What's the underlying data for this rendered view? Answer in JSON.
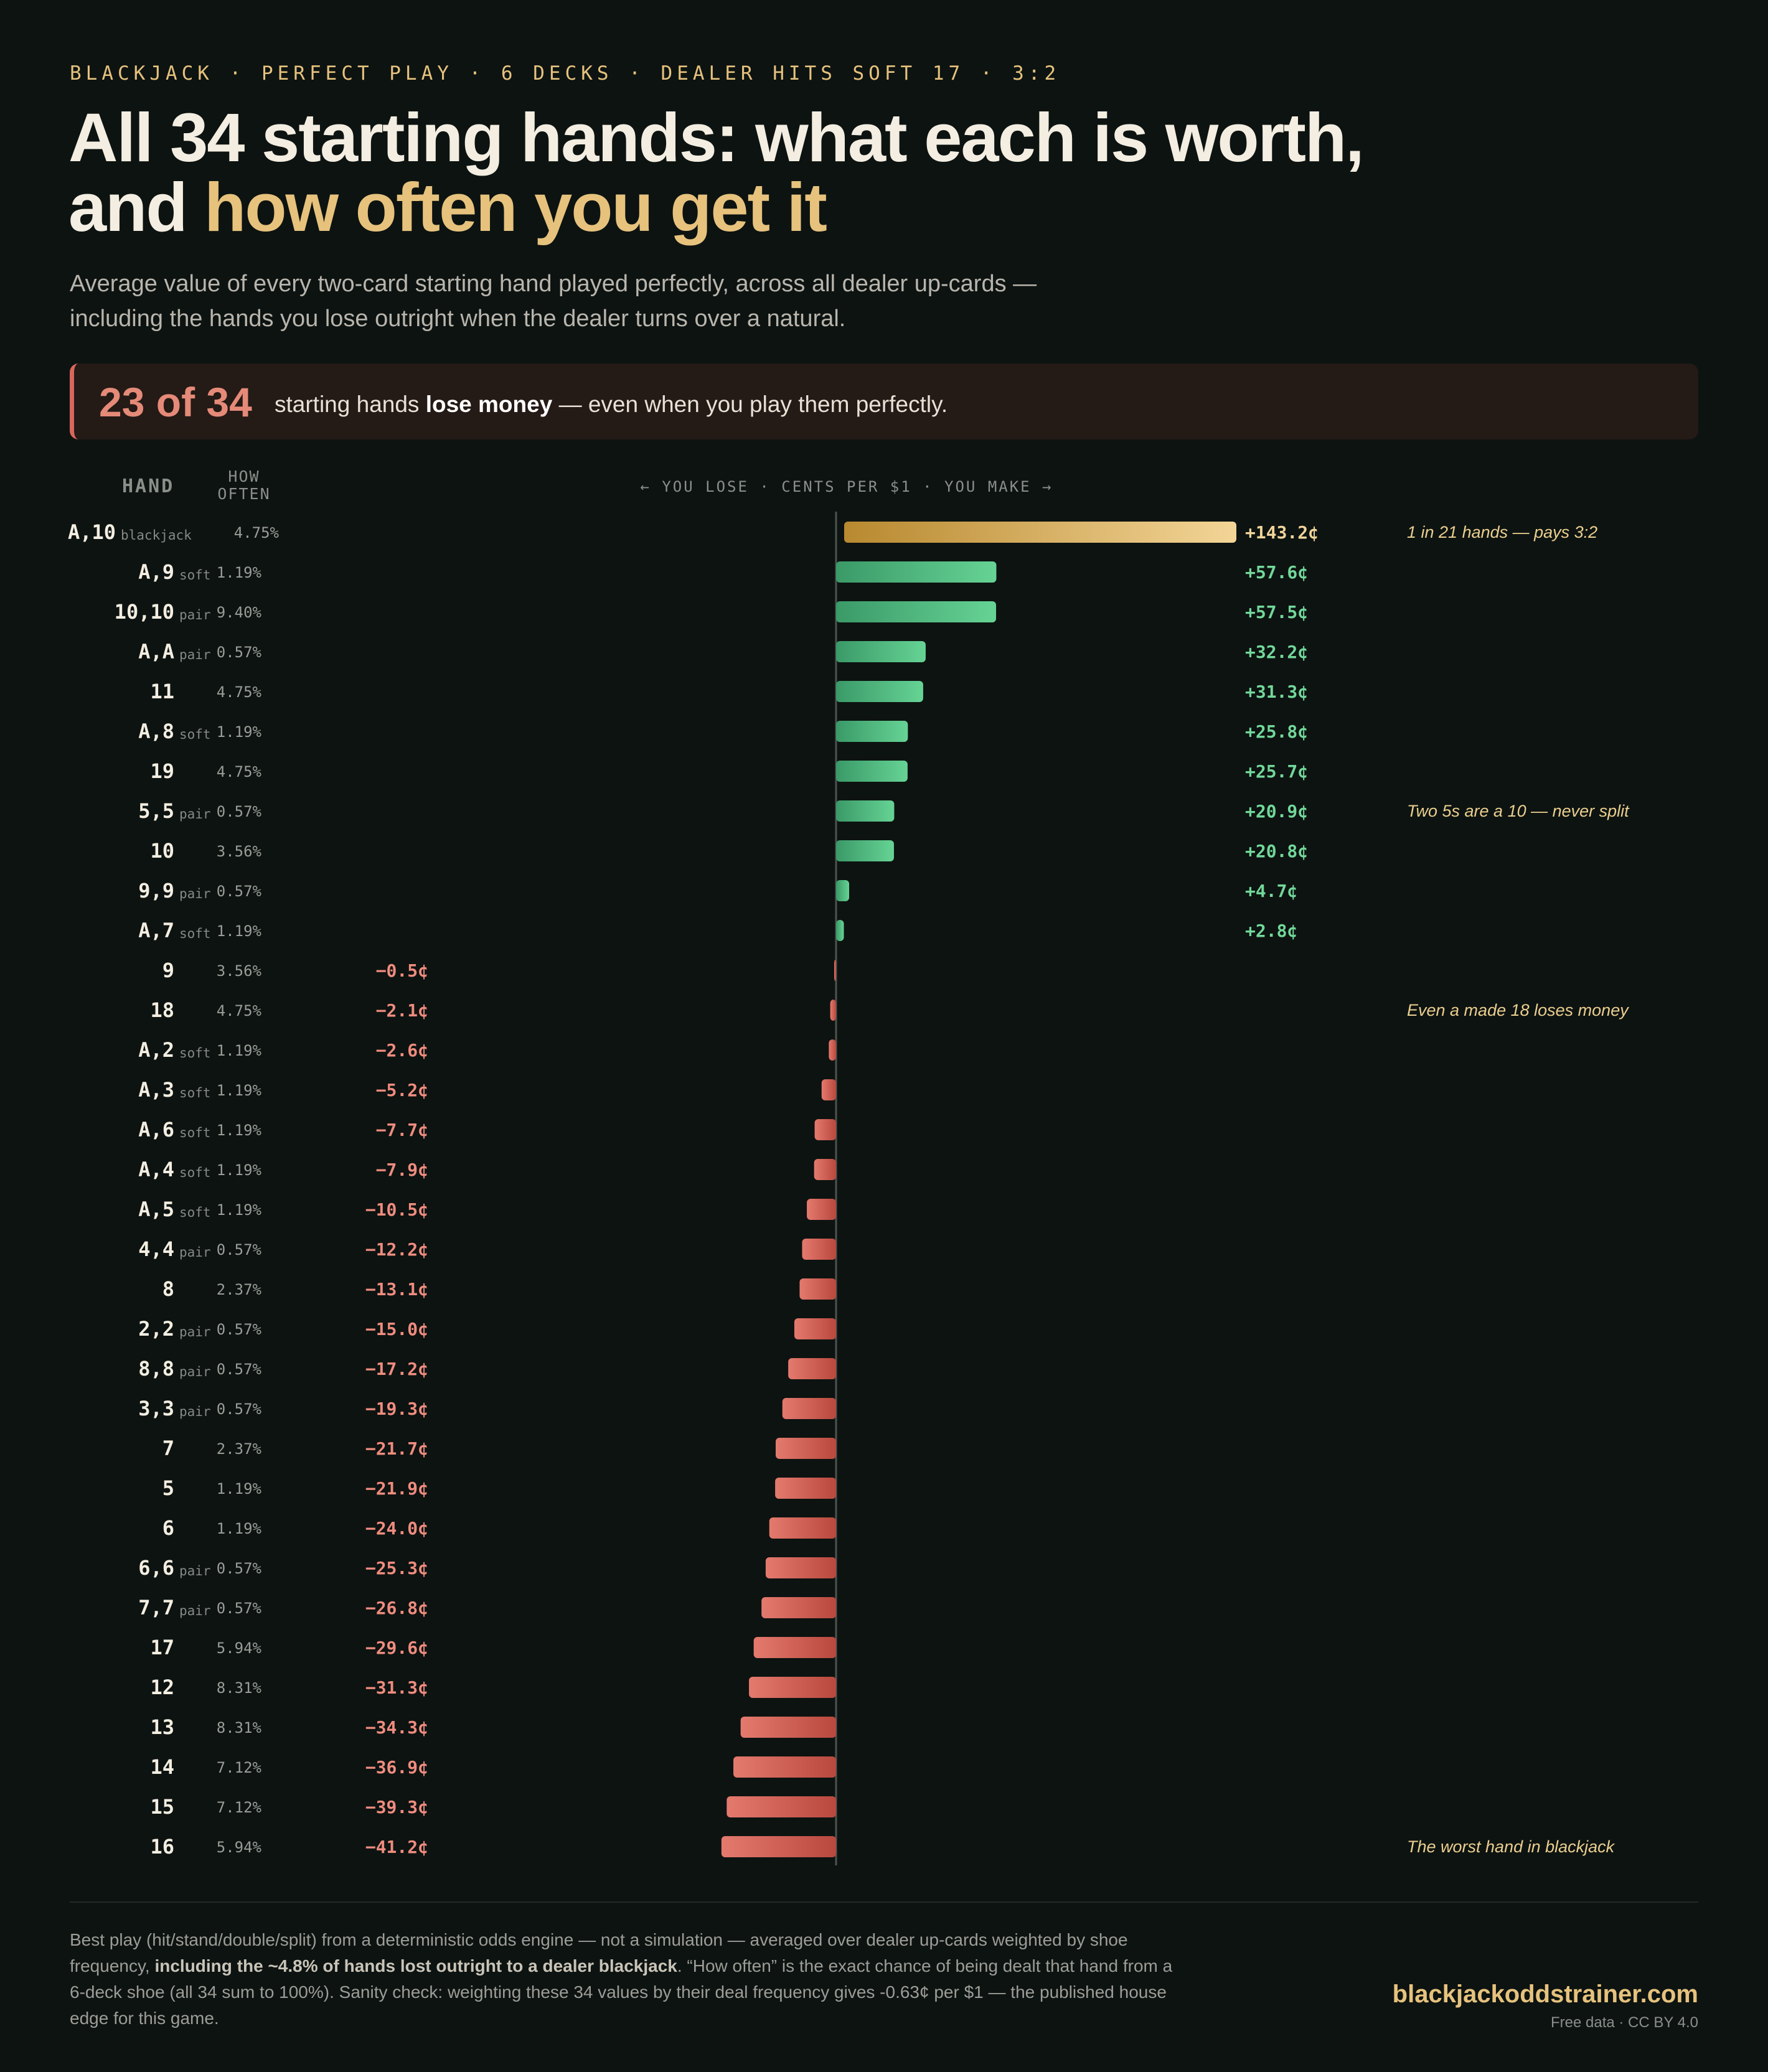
{
  "header": {
    "kicker": "BLACKJACK · PERFECT PLAY · 6 DECKS · DEALER HITS SOFT 17 · 3:2",
    "title_line1": "All 34 starting hands: what each is worth,",
    "title_line2_plain": "and ",
    "title_line2_highlight": "how often you get it",
    "subtitle_line1": "Average value of every two-card starting hand played perfectly, across all dealer up-cards —",
    "subtitle_line2": "including the hands you lose outright when the dealer turns over a natural."
  },
  "callout": {
    "big": "23 of 34",
    "text_pre": "starting hands ",
    "text_bold": "lose money",
    "text_post": " — even when you play them perfectly."
  },
  "columns": {
    "hand": "HAND",
    "often_line1": "HOW",
    "often_line2": "OFTEN",
    "axis": "← YOU LOSE · CENTS PER $1 · YOU MAKE →"
  },
  "colors": {
    "positive": "#5ec98c",
    "negative": "#d9675b",
    "blackjack": "#e6c27d",
    "highlight": "#e6c27d"
  },
  "chart_data": {
    "type": "bar",
    "orientation": "horizontal",
    "unit": "¢",
    "series": [
      {
        "name": "",
        "points": [
          {
            "hand": "A,10",
            "tag": "blackjack",
            "freq": "4.75%",
            "value": 143.2,
            "label": "+143.2¢",
            "note": "1 in 21 hands — pays 3:2"
          },
          {
            "hand": "A,9",
            "tag": "soft",
            "freq": "1.19%",
            "value": 57.6,
            "label": "+57.6¢",
            "note": ""
          },
          {
            "hand": "10,10",
            "tag": "pair",
            "freq": "9.40%",
            "value": 57.5,
            "label": "+57.5¢",
            "note": ""
          },
          {
            "hand": "A,A",
            "tag": "pair",
            "freq": "0.57%",
            "value": 32.2,
            "label": "+32.2¢",
            "note": ""
          },
          {
            "hand": "11",
            "tag": "",
            "freq": "4.75%",
            "value": 31.3,
            "label": "+31.3¢",
            "note": ""
          },
          {
            "hand": "A,8",
            "tag": "soft",
            "freq": "1.19%",
            "value": 25.8,
            "label": "+25.8¢",
            "note": ""
          },
          {
            "hand": "19",
            "tag": "",
            "freq": "4.75%",
            "value": 25.7,
            "label": "+25.7¢",
            "note": ""
          },
          {
            "hand": "5,5",
            "tag": "pair",
            "freq": "0.57%",
            "value": 20.9,
            "label": "+20.9¢",
            "note": "Two 5s are a 10 — never split"
          },
          {
            "hand": "10",
            "tag": "",
            "freq": "3.56%",
            "value": 20.8,
            "label": "+20.8¢",
            "note": ""
          },
          {
            "hand": "9,9",
            "tag": "pair",
            "freq": "0.57%",
            "value": 4.7,
            "label": "+4.7¢",
            "note": ""
          },
          {
            "hand": "A,7",
            "tag": "soft",
            "freq": "1.19%",
            "value": 2.8,
            "label": "+2.8¢",
            "note": ""
          },
          {
            "hand": "9",
            "tag": "",
            "freq": "3.56%",
            "value": -0.5,
            "label": "−0.5¢",
            "note": ""
          },
          {
            "hand": "18",
            "tag": "",
            "freq": "4.75%",
            "value": -2.1,
            "label": "−2.1¢",
            "note": "Even a made 18 loses money"
          },
          {
            "hand": "A,2",
            "tag": "soft",
            "freq": "1.19%",
            "value": -2.6,
            "label": "−2.6¢",
            "note": ""
          },
          {
            "hand": "A,3",
            "tag": "soft",
            "freq": "1.19%",
            "value": -5.2,
            "label": "−5.2¢",
            "note": ""
          },
          {
            "hand": "A,6",
            "tag": "soft",
            "freq": "1.19%",
            "value": -7.7,
            "label": "−7.7¢",
            "note": ""
          },
          {
            "hand": "A,4",
            "tag": "soft",
            "freq": "1.19%",
            "value": -7.9,
            "label": "−7.9¢",
            "note": ""
          },
          {
            "hand": "A,5",
            "tag": "soft",
            "freq": "1.19%",
            "value": -10.5,
            "label": "−10.5¢",
            "note": ""
          },
          {
            "hand": "4,4",
            "tag": "pair",
            "freq": "0.57%",
            "value": -12.2,
            "label": "−12.2¢",
            "note": ""
          },
          {
            "hand": "8",
            "tag": "",
            "freq": "2.37%",
            "value": -13.1,
            "label": "−13.1¢",
            "note": ""
          },
          {
            "hand": "2,2",
            "tag": "pair",
            "freq": "0.57%",
            "value": -15.0,
            "label": "−15.0¢",
            "note": ""
          },
          {
            "hand": "8,8",
            "tag": "pair",
            "freq": "0.57%",
            "value": -17.2,
            "label": "−17.2¢",
            "note": ""
          },
          {
            "hand": "3,3",
            "tag": "pair",
            "freq": "0.57%",
            "value": -19.3,
            "label": "−19.3¢",
            "note": ""
          },
          {
            "hand": "7",
            "tag": "",
            "freq": "2.37%",
            "value": -21.7,
            "label": "−21.7¢",
            "note": ""
          },
          {
            "hand": "5",
            "tag": "",
            "freq": "1.19%",
            "value": -21.9,
            "label": "−21.9¢",
            "note": ""
          },
          {
            "hand": "6",
            "tag": "",
            "freq": "1.19%",
            "value": -24.0,
            "label": "−24.0¢",
            "note": ""
          },
          {
            "hand": "6,6",
            "tag": "pair",
            "freq": "0.57%",
            "value": -25.3,
            "label": "−25.3¢",
            "note": ""
          },
          {
            "hand": "7,7",
            "tag": "pair",
            "freq": "0.57%",
            "value": -26.8,
            "label": "−26.8¢",
            "note": ""
          },
          {
            "hand": "17",
            "tag": "",
            "freq": "5.94%",
            "value": -29.6,
            "label": "−29.6¢",
            "note": ""
          },
          {
            "hand": "12",
            "tag": "",
            "freq": "8.31%",
            "value": -31.3,
            "label": "−31.3¢",
            "note": ""
          },
          {
            "hand": "13",
            "tag": "",
            "freq": "8.31%",
            "value": -34.3,
            "label": "−34.3¢",
            "note": ""
          },
          {
            "hand": "14",
            "tag": "",
            "freq": "7.12%",
            "value": -36.9,
            "label": "−36.9¢",
            "note": ""
          },
          {
            "hand": "15",
            "tag": "",
            "freq": "7.12%",
            "value": -39.3,
            "label": "−39.3¢",
            "note": ""
          },
          {
            "hand": "16",
            "tag": "",
            "freq": "5.94%",
            "value": -41.2,
            "label": "−41.2¢",
            "note": "The worst hand in blackjack"
          }
        ]
      }
    ]
  },
  "footer": {
    "method_pre": "Best play (hit/stand/double/split) from a deterministic odds engine — not a simulation — averaged over dealer up-cards weighted by shoe frequency, ",
    "method_bold": "including the ~4.8% of hands lost outright to a dealer blackjack",
    "method_post": ". “How often” is the exact chance of being dealt that hand from a 6-deck shoe (all 34 sum to 100%). Sanity check: weighting these 34 values by their deal frequency gives -0.63¢ per $1 — the published house edge for this game.",
    "brand": "blackjackoddstrainer.com",
    "license": "Free data · CC BY 4.0"
  }
}
